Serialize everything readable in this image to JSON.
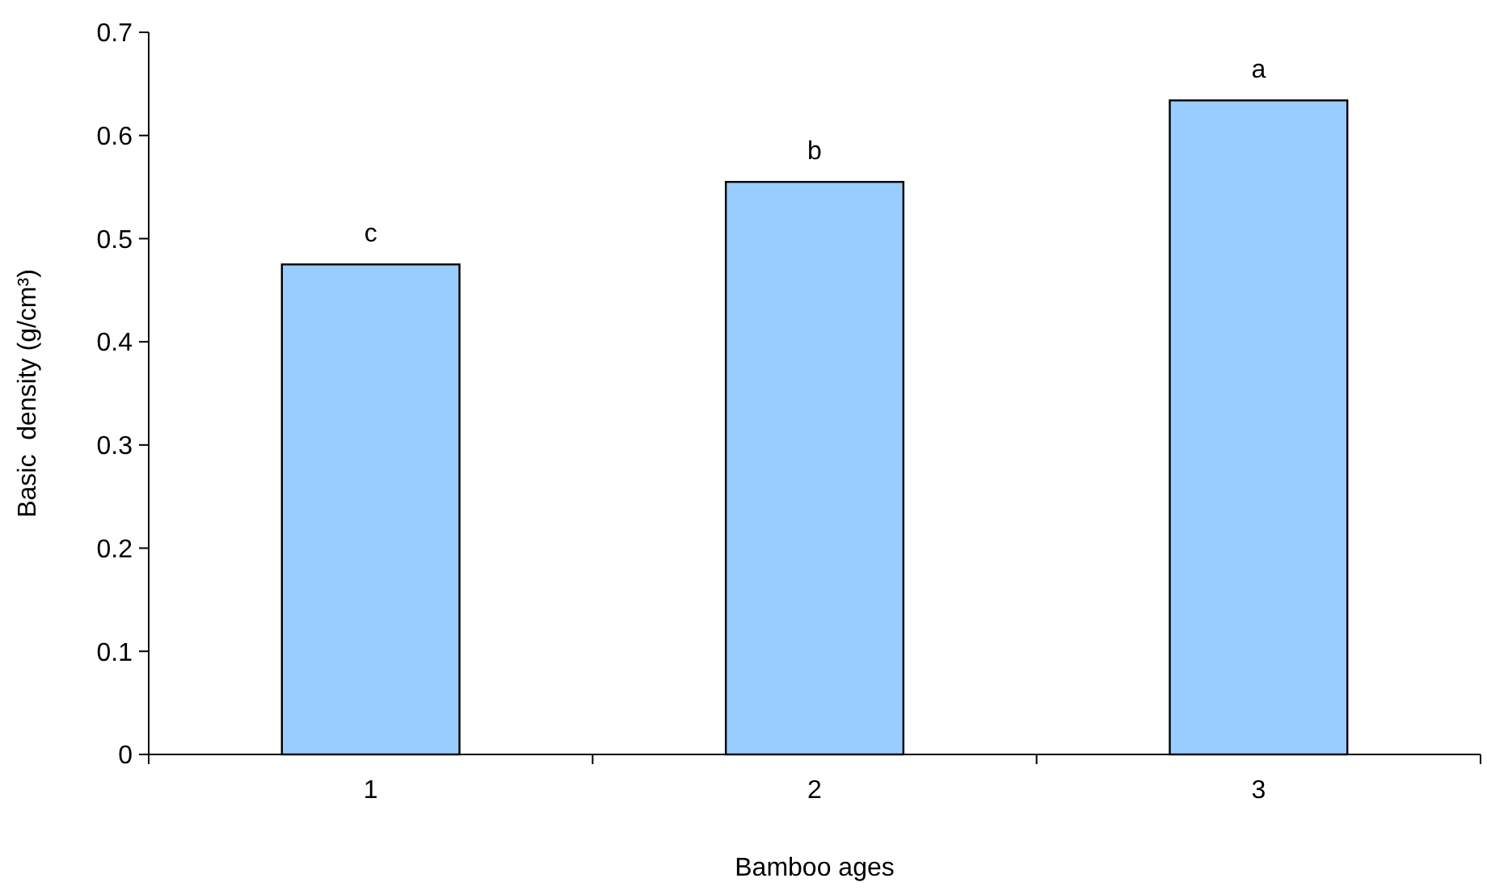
{
  "chart_data": {
    "type": "bar",
    "xlabel": "Bamboo ages",
    "ylabel": "Basic  density (g/cm³)",
    "categories": [
      "1",
      "2",
      "3"
    ],
    "values": [
      0.475,
      0.555,
      0.634
    ],
    "color": "#99ccff",
    "ylim": [
      0,
      0.7
    ],
    "yticks": [
      0,
      0.1,
      0.2,
      0.3,
      0.4,
      0.5,
      0.6,
      0.7
    ],
    "annotations": [
      {
        "text": "c",
        "x": "1",
        "y": 0.475
      },
      {
        "text": "b",
        "x": "2",
        "y": 0.555
      },
      {
        "text": "a",
        "x": "3",
        "y": 0.634
      }
    ]
  }
}
